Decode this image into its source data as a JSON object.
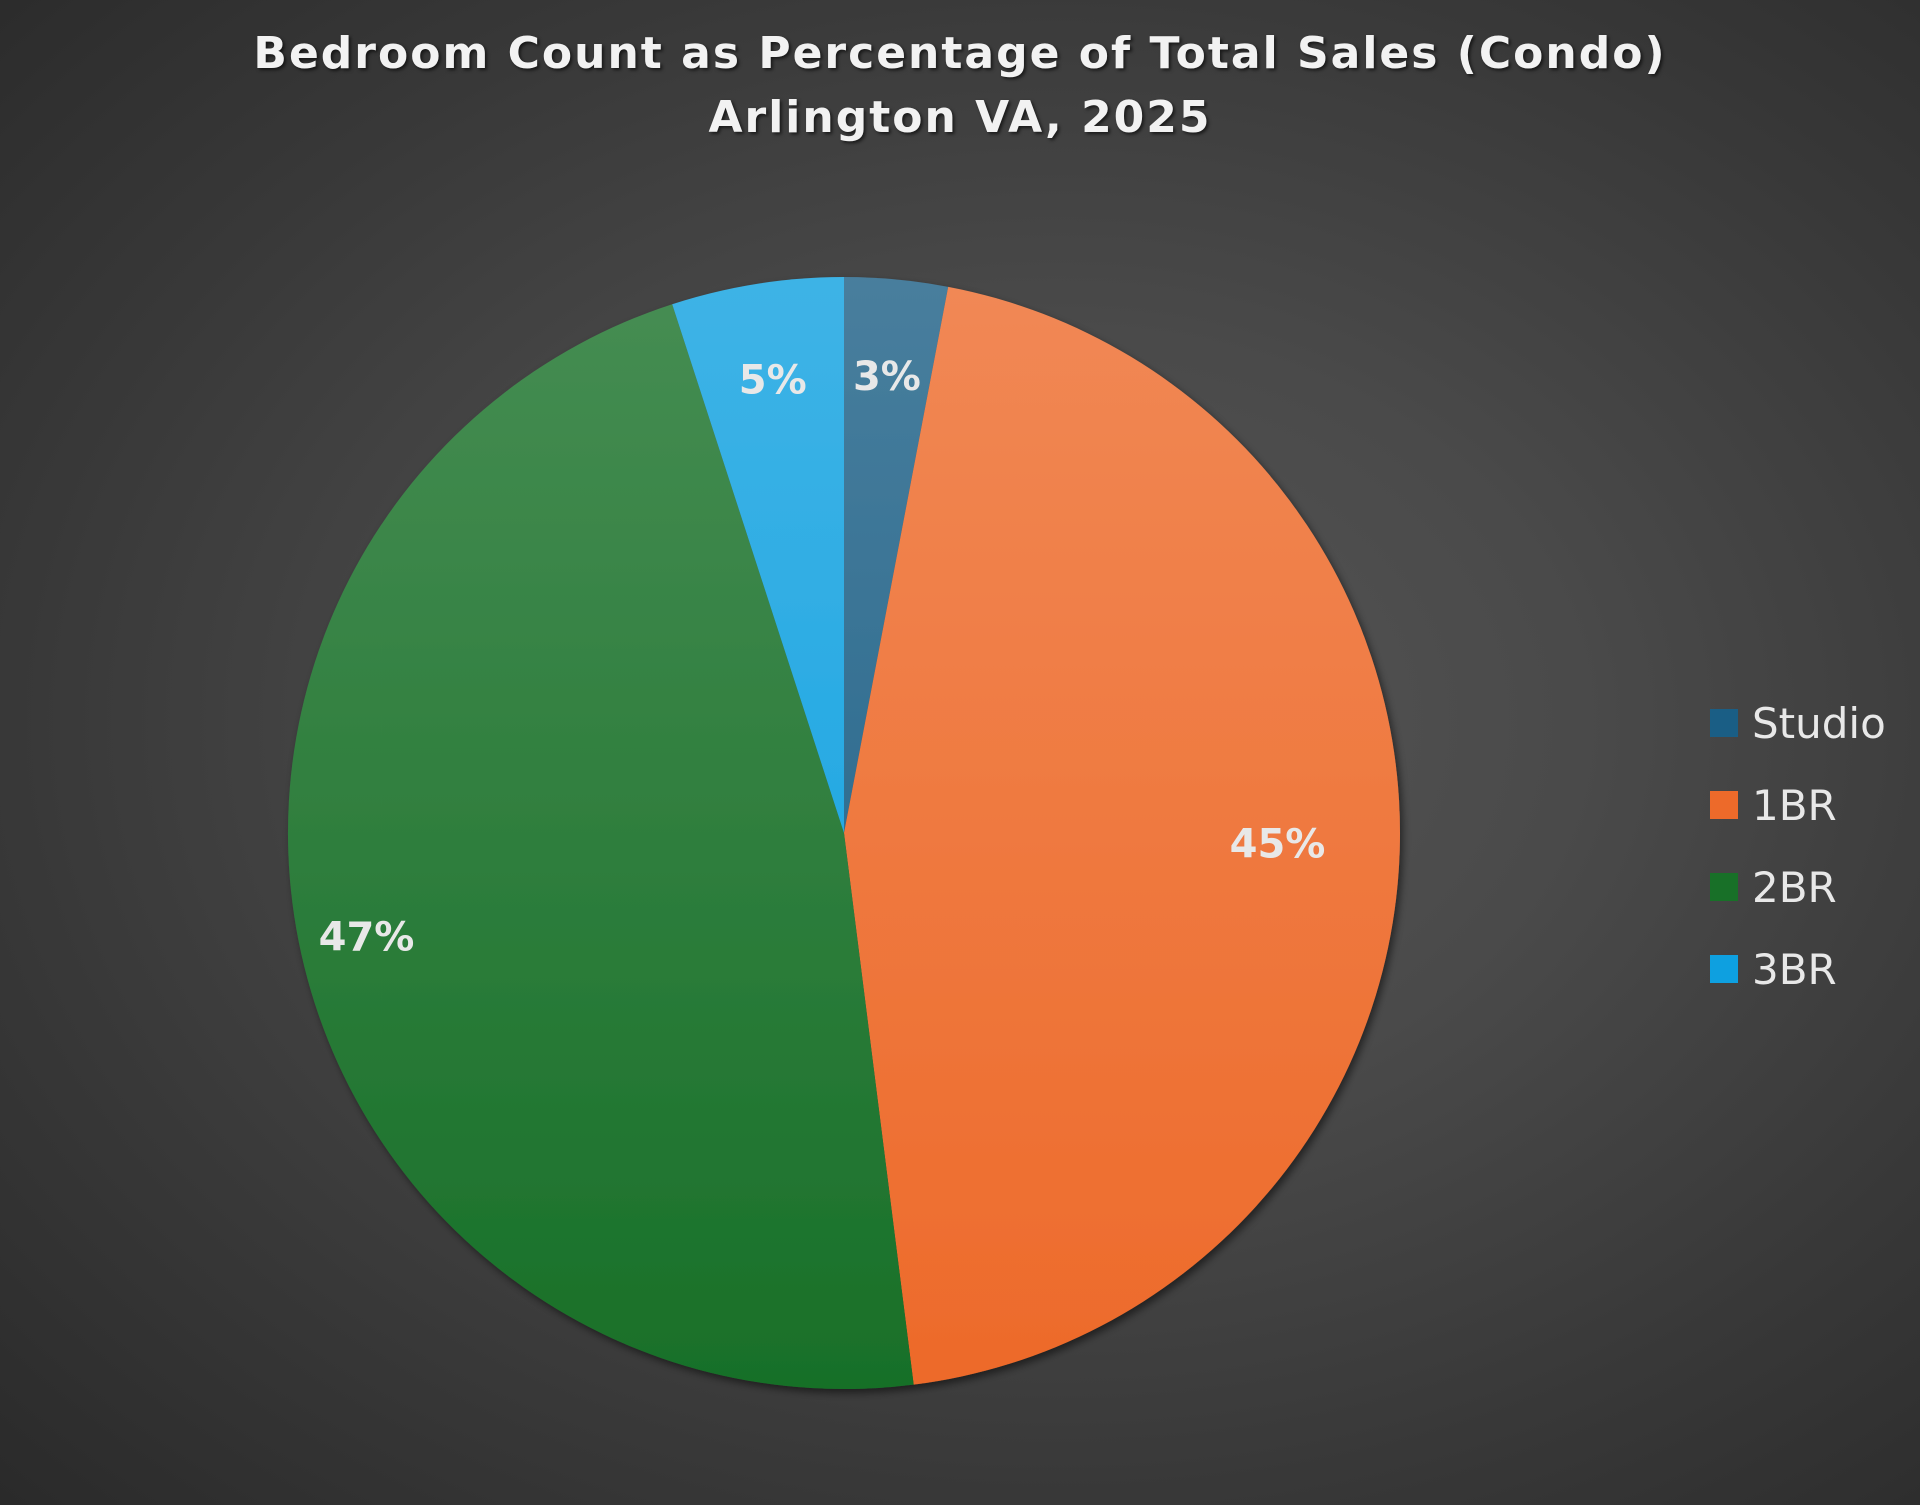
{
  "chart_data": {
    "type": "pie",
    "title": "Bedroom Count as Percentage of Total Sales (Condo)",
    "subtitle": "Arlington VA, 2025",
    "categories": [
      "Studio",
      "1BR",
      "2BR",
      "3BR"
    ],
    "values": [
      3,
      45,
      47,
      5
    ],
    "labels": [
      "3%",
      "45%",
      "47%",
      "5%"
    ],
    "colors": [
      "#1a5e85",
      "#ed6a2a",
      "#187028",
      "#0ea0e0"
    ],
    "legend_position": "right"
  }
}
